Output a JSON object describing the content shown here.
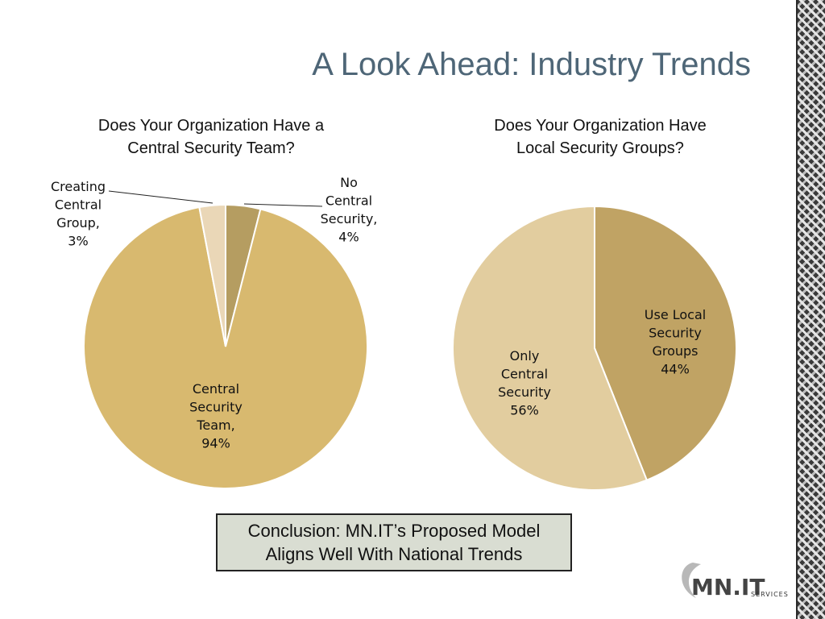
{
  "slide": {
    "title": "A Look Ahead: Industry Trends",
    "conclusion": "Conclusion: MN.IT’s Proposed Model\nAligns Well With National Trends"
  },
  "logo": {
    "brand": "MN.IT",
    "sub": "SERVICES"
  },
  "colors": {
    "title": "#4e6677",
    "conclusion_bg": "#d9ddd2"
  },
  "chart_data": [
    {
      "type": "pie",
      "title": "Does Your Organization Have a\nCentral Security Team?",
      "slices": [
        {
          "label": "No Central Security",
          "value": 4,
          "color": "#b59d61"
        },
        {
          "label": "Central Security Team",
          "value": 94,
          "color": "#d8b96f"
        },
        {
          "label": "Creating Central Group",
          "value": 3,
          "color": "#ead7b7"
        }
      ],
      "data_labels": [
        {
          "lines": [
            "No",
            "Central",
            "Security,",
            "4%"
          ]
        },
        {
          "lines": [
            "Central",
            "Security",
            "Team,",
            "94%"
          ]
        },
        {
          "lines": [
            "Creating",
            "Central",
            "Group,",
            "3%"
          ]
        }
      ]
    },
    {
      "type": "pie",
      "title": "Does Your Organization Have\nLocal Security Groups?",
      "slices": [
        {
          "label": "Use Local Security Groups",
          "value": 44,
          "color": "#c0a364"
        },
        {
          "label": "Only Central Security",
          "value": 56,
          "color": "#e2cd9f"
        }
      ],
      "data_labels": [
        {
          "lines": [
            "Use Local",
            "Security",
            "Groups",
            "44%"
          ]
        },
        {
          "lines": [
            "Only",
            "Central",
            "Security",
            "56%"
          ]
        }
      ]
    }
  ]
}
